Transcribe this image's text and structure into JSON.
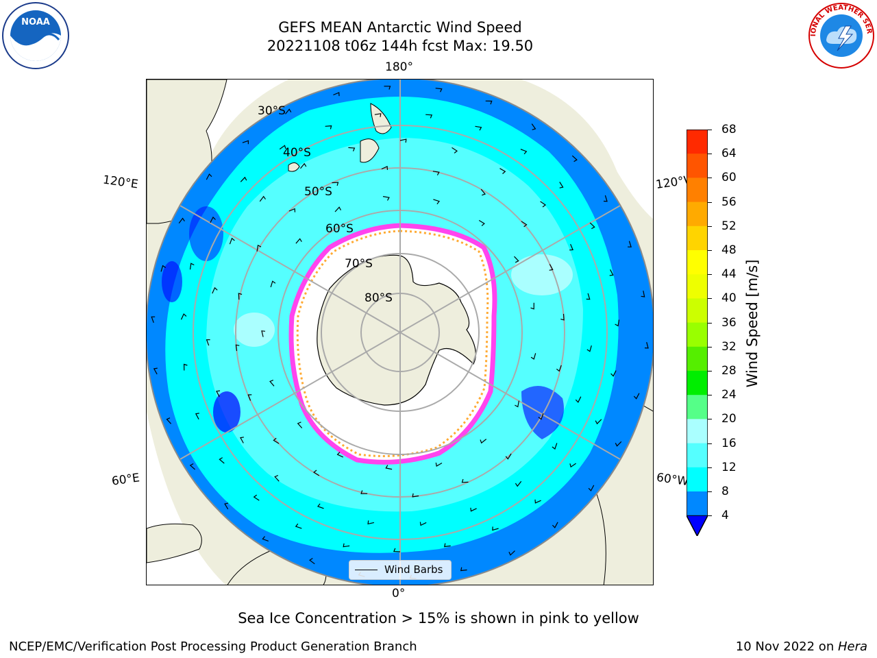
{
  "header": {
    "title_line1": "GEFS MEAN Antarctic Wind Speed",
    "title_line2": "20221108 t06z 144h fcst   Max: 19.50"
  },
  "logos": {
    "left": {
      "icon": "noaa-logo",
      "text": "NOAA"
    },
    "right": {
      "icon": "national-weather-service-logo",
      "text": "NATIONAL WEATHER SERVICE"
    }
  },
  "map": {
    "projection": "south-polar-stereographic",
    "longitude_labels": {
      "top": "180°",
      "bottom": "0°",
      "left_upper": "120°E",
      "left_lower": "60°E",
      "right_upper": "120°W",
      "right_lower": "60°W"
    },
    "latitude_labels": [
      "30°S",
      "40°S",
      "50°S",
      "60°S",
      "70°S",
      "80°S"
    ],
    "legend": {
      "label": "Wind Barbs"
    },
    "colors": {
      "land": "#eeeedd",
      "sea_ice_edge": "#ff44ee",
      "sea_ice_inner": "#ffaa33",
      "gridline": "#aaaaaa"
    }
  },
  "colorbar": {
    "label": "Wind Speed [m/s]",
    "ticks": [
      "68",
      "64",
      "60",
      "56",
      "52",
      "48",
      "44",
      "40",
      "36",
      "32",
      "28",
      "24",
      "20",
      "16",
      "12",
      "8",
      "4"
    ],
    "colors": [
      "#ff0000",
      "#ff2a00",
      "#ff5500",
      "#ff8000",
      "#ffaa00",
      "#ffd400",
      "#ffff00",
      "#eeff00",
      "#ccff00",
      "#99ff00",
      "#55ee00",
      "#00ee00",
      "#55ff88",
      "#aaffff",
      "#55ffff",
      "#00ffff",
      "#0088ff"
    ],
    "under_color": "#0000ff"
  },
  "footer": {
    "note": "Sea Ice Concentration > 15% is shown in pink to yellow",
    "credit": "NCEP/EMC/Verification Post Processing Product Generation Branch",
    "date": "10 Nov 2022 on ",
    "machine": "Hera"
  }
}
